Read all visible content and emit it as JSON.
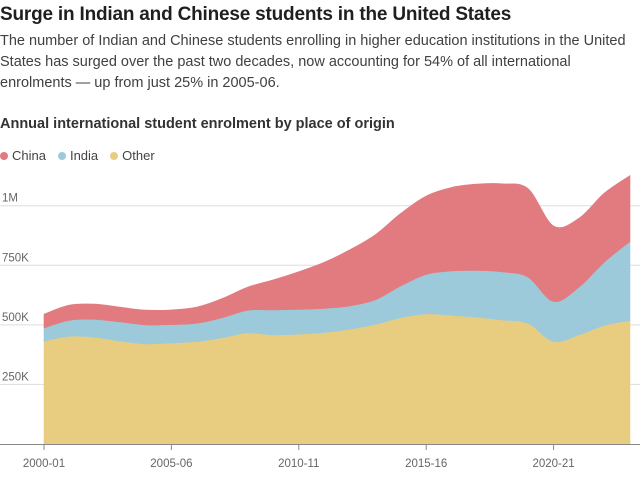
{
  "header": {
    "title": "Surge in Indian and Chinese students in the United States",
    "subtitle": "The number of Indian and Chinese students enrolling in higher education institutions in the United States has surged over the past two decades, now accounting for 54% of all international enrolments — up from just 25% in 2005-06."
  },
  "chart_data": {
    "type": "area",
    "stacked": true,
    "title": "Annual international student enrolment by place of origin",
    "x": [
      2000,
      2001,
      2002,
      2003,
      2004,
      2005,
      2006,
      2007,
      2008,
      2009,
      2010,
      2011,
      2012,
      2013,
      2014,
      2015,
      2016,
      2017,
      2018,
      2019,
      2020,
      2021,
      2022,
      2023
    ],
    "x_tick_labels": [
      "2000-01",
      "2005-06",
      "2010-11",
      "2015-16",
      "2020-21"
    ],
    "x_tick_values": [
      2000,
      2005,
      2010,
      2015,
      2020
    ],
    "y_tick_labels": [
      "250K",
      "500K",
      "750K",
      "1M"
    ],
    "y_tick_values": [
      250000,
      500000,
      750000,
      1000000
    ],
    "ylim": [
      0,
      1150000
    ],
    "grid": true,
    "legend_position": "top-left",
    "series": [
      {
        "name": "Other",
        "color": "#e8cd80",
        "values": [
          432000,
          452000,
          448000,
          432000,
          420000,
          424000,
          430000,
          446000,
          466000,
          458000,
          461000,
          468000,
          482000,
          502000,
          530000,
          546000,
          540000,
          532000,
          520000,
          506000,
          430000,
          458000,
          498000,
          518000
        ]
      },
      {
        "name": "India",
        "color": "#9ccadb",
        "values": [
          55000,
          67000,
          75000,
          80000,
          80000,
          77000,
          77000,
          84000,
          95000,
          105000,
          104000,
          101000,
          97000,
          103000,
          133000,
          166000,
          186000,
          196000,
          202000,
          194000,
          168000,
          200000,
          266000,
          332000
        ]
      },
      {
        "name": "China",
        "color": "#e27b80",
        "values": [
          58000,
          64000,
          64000,
          62000,
          62000,
          62000,
          68000,
          81000,
          98000,
          126000,
          158000,
          194000,
          236000,
          273000,
          305000,
          329000,
          351000,
          363000,
          370000,
          372000,
          317000,
          290000,
          290000,
          277000
        ]
      }
    ]
  }
}
